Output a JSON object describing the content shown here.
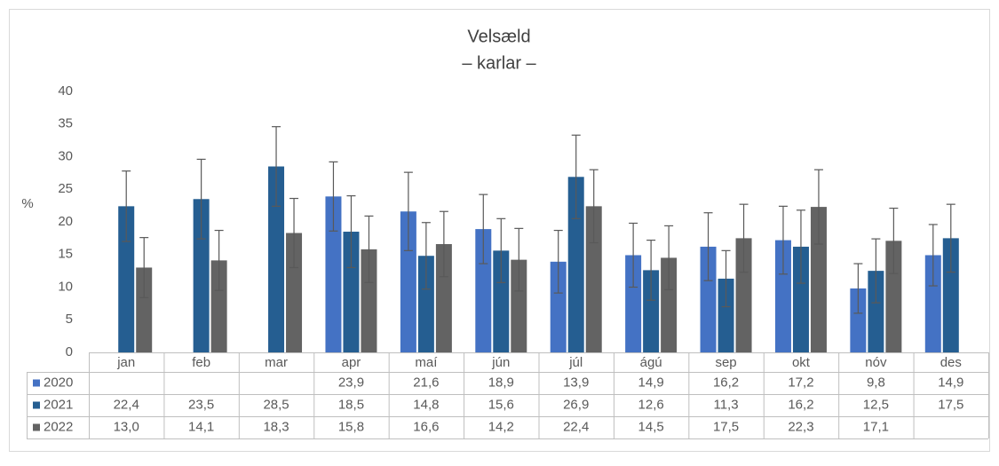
{
  "chart_data": {
    "type": "bar",
    "title": "Velsæld",
    "subtitle": "– karlar –",
    "y_label": "%",
    "categories": [
      "jan",
      "feb",
      "mar",
      "apr",
      "maí",
      "jún",
      "júl",
      "ágú",
      "sep",
      "okt",
      "nóv",
      "des"
    ],
    "ylim": [
      0,
      40
    ],
    "yticks": [
      0,
      5,
      10,
      15,
      20,
      25,
      30,
      35,
      40
    ],
    "grid": false,
    "series": [
      {
        "name": "2020",
        "color": "#4472c4",
        "values": [
          null,
          null,
          null,
          23.9,
          21.6,
          18.9,
          13.9,
          14.9,
          16.2,
          17.2,
          9.8,
          14.9
        ],
        "value_labels": [
          null,
          null,
          null,
          "23,9",
          "21,6",
          "18,9",
          "13,9",
          "14,9",
          "16,2",
          "17,2",
          "9,8",
          "14,9"
        ],
        "errors": [
          null,
          null,
          null,
          5.3,
          6.0,
          5.3,
          4.8,
          4.9,
          5.2,
          5.2,
          3.8,
          4.7
        ]
      },
      {
        "name": "2021",
        "color": "#255e91",
        "values": [
          22.4,
          23.5,
          28.5,
          18.5,
          14.8,
          15.6,
          26.9,
          12.6,
          11.3,
          16.2,
          12.5,
          17.5
        ],
        "value_labels": [
          "22,4",
          "23,5",
          "28,5",
          "18,5",
          "14,8",
          "15,6",
          "26,9",
          "12,6",
          "11,3",
          "16,2",
          "12,5",
          "17,5"
        ],
        "errors": [
          5.4,
          6.1,
          6.1,
          5.5,
          5.1,
          4.9,
          6.4,
          4.6,
          4.3,
          5.6,
          4.9,
          5.2
        ]
      },
      {
        "name": "2022",
        "color": "#636363",
        "values": [
          13.0,
          14.1,
          18.3,
          15.8,
          16.6,
          14.2,
          22.4,
          14.5,
          17.5,
          22.3,
          17.1,
          null
        ],
        "value_labels": [
          "13,0",
          "14,1",
          "18,3",
          "15,8",
          "16,6",
          "14,2",
          "22,4",
          "14,5",
          "17,5",
          "22,3",
          "17,1",
          null
        ],
        "errors": [
          4.6,
          4.6,
          5.3,
          5.1,
          5.0,
          4.8,
          5.6,
          4.9,
          5.2,
          5.7,
          5.0,
          null
        ]
      }
    ]
  }
}
